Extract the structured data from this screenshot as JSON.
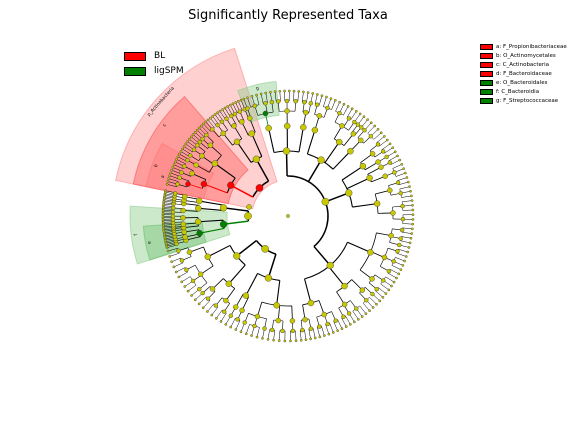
{
  "chart_data": {
    "type": "cladogram",
    "title": "Significantly Represented Taxa",
    "groups": [
      {
        "name": "BL",
        "color": "#ff0000"
      },
      {
        "name": "ligSPM",
        "color": "#007f00"
      }
    ],
    "taxa": [
      {
        "key": "a",
        "label": "a: F_Propionibacteriaceae",
        "group": "BL"
      },
      {
        "key": "b",
        "label": "b: O_Actinomycetales",
        "group": "BL"
      },
      {
        "key": "c",
        "label": "c: C_Actinobacteria",
        "group": "BL"
      },
      {
        "key": "d",
        "label": "d: F_Bacteroidaceae",
        "group": "BL"
      },
      {
        "key": "e",
        "label": "e: O_Bacteroidales",
        "group": "ligSPM"
      },
      {
        "key": "f",
        "label": "f: C_Bacteroidia",
        "group": "ligSPM"
      },
      {
        "key": "g",
        "label": "g: F_Streptococcaceae",
        "group": "ligSPM"
      }
    ],
    "highlight_labels": {
      "actino": "p_Actinobacteria",
      "c": "c",
      "b": "b",
      "a": "a",
      "f": "f",
      "e": "e",
      "g": "g"
    },
    "colors": {
      "node": "#c8c800",
      "bl_shade": "#ff8a8a",
      "lig_shade": "#8ecf8e"
    }
  }
}
